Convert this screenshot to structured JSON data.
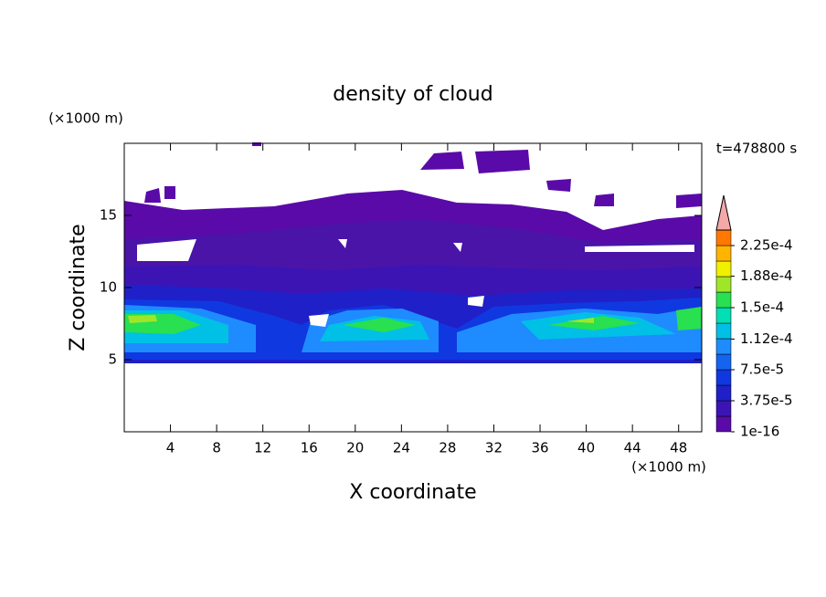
{
  "chart_data": {
    "type": "contour",
    "title": "density of cloud",
    "x_label": "X coordinate",
    "y_label": "Z coordinate",
    "x_unit": "(×1000 m)",
    "y_unit": "(×1000 m)",
    "time_label": "t=478800 s",
    "xlim": [
      0,
      50
    ],
    "ylim": [
      0,
      20
    ],
    "xticks": [
      4,
      8,
      12,
      16,
      20,
      24,
      28,
      32,
      36,
      40,
      44,
      48
    ],
    "yticks": [
      5,
      10,
      15
    ],
    "colorbar": {
      "levels": [
        1e-16,
        1.875e-05,
        3.75e-05,
        5.625e-05,
        7.5e-05,
        9.375e-05,
        0.0001125,
        0.00013125,
        0.00015,
        0.00016875,
        0.0001875,
        0.00020625,
        0.000225,
        0.00024375
      ],
      "colors": [
        "#5a0aa8",
        "#3c14b4",
        "#2020c8",
        "#1038e0",
        "#1464f0",
        "#1e8cff",
        "#00c0e6",
        "#00e0b4",
        "#28e050",
        "#a0e628",
        "#f0f000",
        "#ffb400",
        "#ff7800"
      ],
      "extend_color": "#f4a8a8",
      "ticks": [
        {
          "value": 1e-16,
          "label": "1e-16"
        },
        {
          "value": 3.75e-05,
          "label": "3.75e-5"
        },
        {
          "value": 7.5e-05,
          "label": "7.5e-5"
        },
        {
          "value": 0.000112,
          "label": "1.12e-4"
        },
        {
          "value": 0.00015,
          "label": "1.5e-4"
        },
        {
          "value": 0.000188,
          "label": "1.88e-4"
        },
        {
          "value": 0.000225,
          "label": "2.25e-4"
        }
      ]
    }
  }
}
